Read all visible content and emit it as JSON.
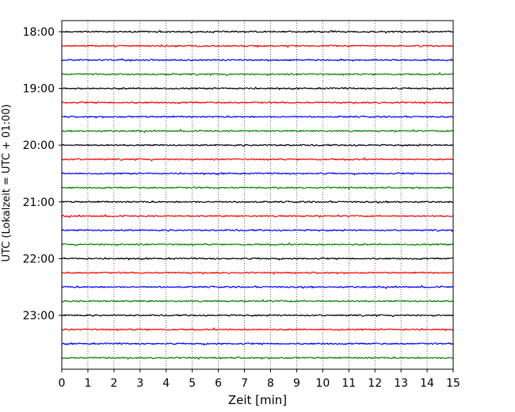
{
  "chart_data": {
    "type": "line",
    "title": "",
    "xlabel": "Zeit  [min]",
    "ylabel": "UTC (Lokalzeit = UTC + 01:00)",
    "xlim": [
      0,
      15
    ],
    "x_ticks": [
      "0",
      "1",
      "2",
      "3",
      "4",
      "5",
      "6",
      "7",
      "8",
      "9",
      "10",
      "11",
      "12",
      "13",
      "14",
      "15"
    ],
    "y_ticks": [
      "18:00",
      "19:00",
      "20:00",
      "21:00",
      "22:00",
      "23:00"
    ],
    "grid": "vertical-dotted",
    "color_cycle": [
      "#000000",
      "#ff0000",
      "#0000ff",
      "#008000"
    ],
    "traces": [
      {
        "label": "18:00",
        "color": "#000000"
      },
      {
        "label": "18:15",
        "color": "#ff0000"
      },
      {
        "label": "18:30",
        "color": "#0000ff"
      },
      {
        "label": "18:45",
        "color": "#008000"
      },
      {
        "label": "19:00",
        "color": "#000000"
      },
      {
        "label": "19:15",
        "color": "#ff0000"
      },
      {
        "label": "19:30",
        "color": "#0000ff"
      },
      {
        "label": "19:45",
        "color": "#008000"
      },
      {
        "label": "20:00",
        "color": "#000000"
      },
      {
        "label": "20:15",
        "color": "#ff0000"
      },
      {
        "label": "20:30",
        "color": "#0000ff"
      },
      {
        "label": "20:45",
        "color": "#008000"
      },
      {
        "label": "21:00",
        "color": "#000000"
      },
      {
        "label": "21:15",
        "color": "#ff0000"
      },
      {
        "label": "21:30",
        "color": "#0000ff"
      },
      {
        "label": "21:45",
        "color": "#008000"
      },
      {
        "label": "22:00",
        "color": "#000000"
      },
      {
        "label": "22:15",
        "color": "#ff0000"
      },
      {
        "label": "22:30",
        "color": "#0000ff"
      },
      {
        "label": "22:45",
        "color": "#008000"
      },
      {
        "label": "23:00",
        "color": "#000000"
      },
      {
        "label": "23:15",
        "color": "#ff0000"
      },
      {
        "label": "23:30",
        "color": "#0000ff"
      },
      {
        "label": "23:45",
        "color": "#008000"
      }
    ]
  }
}
